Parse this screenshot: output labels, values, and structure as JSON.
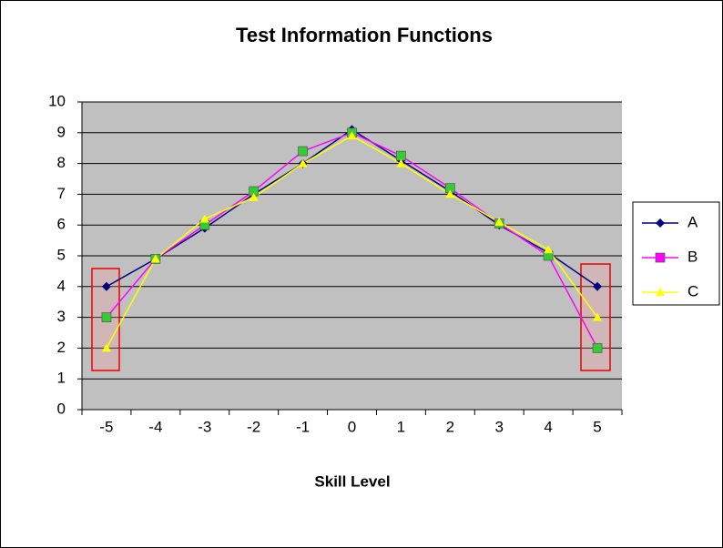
{
  "chart_data": {
    "type": "line",
    "title": "Test Information Functions",
    "x_label": "Skill Level",
    "categories": [
      "-5",
      "-4",
      "-3",
      "-2",
      "-1",
      "0",
      "1",
      "2",
      "3",
      "4",
      "5"
    ],
    "series": [
      {
        "name": "A",
        "color": "#000080",
        "marker": "diamond",
        "values": [
          4,
          4.9,
          5.9,
          7,
          8,
          9.1,
          8.1,
          7.1,
          6,
          5.1,
          4
        ]
      },
      {
        "name": "B",
        "color": "#ff00ff",
        "marker": "square",
        "marker_color": "#33cc33",
        "values": [
          3,
          4.9,
          6,
          7.1,
          8.4,
          9,
          8.25,
          7.2,
          6.05,
          5,
          2
        ]
      },
      {
        "name": "C",
        "color": "#ffff00",
        "marker": "triangle",
        "values": [
          2,
          4.9,
          6.2,
          6.9,
          8,
          8.9,
          8,
          7,
          6.1,
          5.2,
          3
        ]
      }
    ],
    "ylim": [
      0,
      10
    ],
    "yticks": [
      0,
      1,
      2,
      3,
      4,
      5,
      6,
      7,
      8,
      9,
      10
    ],
    "grid": true,
    "legend": "right"
  }
}
